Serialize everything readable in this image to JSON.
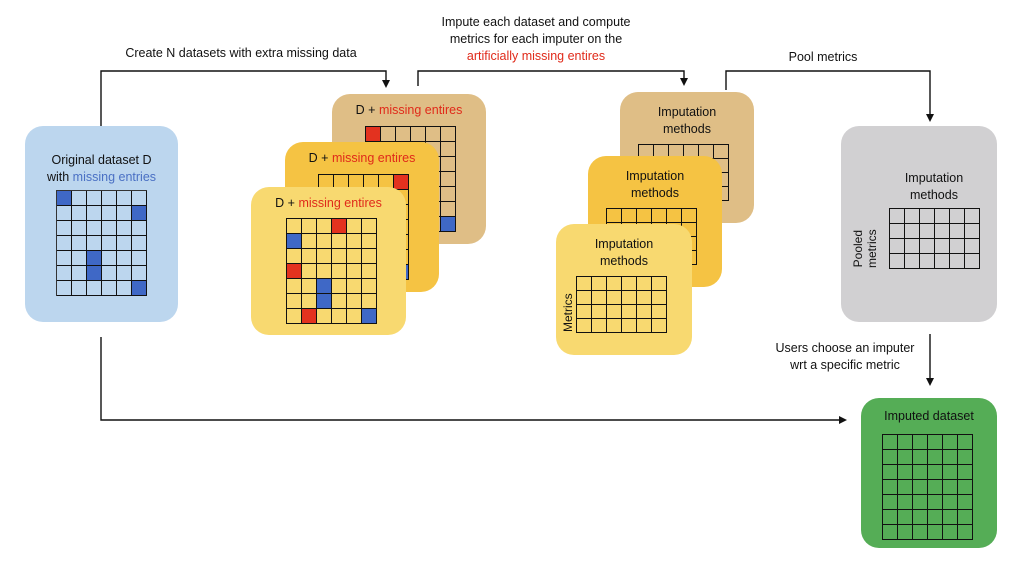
{
  "labels": {
    "create_datasets": "Create N datasets with extra missing data",
    "impute_line1": "Impute each dataset and compute",
    "impute_line2": "metrics for each imputer on the",
    "impute_line3": "artificially missing entires",
    "pool_metrics": "Pool metrics",
    "users_line1": "Users choose an imputer",
    "users_line2": "wrt a specific metric"
  },
  "original": {
    "title_line1": "Original dataset D",
    "title_prefix": "with ",
    "title_highlight": "missing entries",
    "color": "#bcd6ee"
  },
  "masked_datasets": {
    "prefix": "D + ",
    "highlight": "missing entires",
    "colors": [
      "#dfbe86",
      "#f5c343",
      "#f8d970"
    ]
  },
  "imputation": {
    "line1": "Imputation",
    "line2": "methods",
    "metrics_label": "Metrics",
    "colors": [
      "#dfbe86",
      "#f5c343",
      "#f8d970"
    ]
  },
  "pooled": {
    "line1": "Imputation",
    "line2": "methods",
    "metrics_line1": "Pooled",
    "metrics_line2": "metrics",
    "color": "#d1d0d2"
  },
  "imputed": {
    "title": "Imputed dataset",
    "color": "#55ad56"
  },
  "colors": {
    "missing_original": "#3f68c6",
    "missing_artificial": "#e3321f",
    "highlight_red": "#e02a1a",
    "highlight_blue": "#4a70c4"
  }
}
